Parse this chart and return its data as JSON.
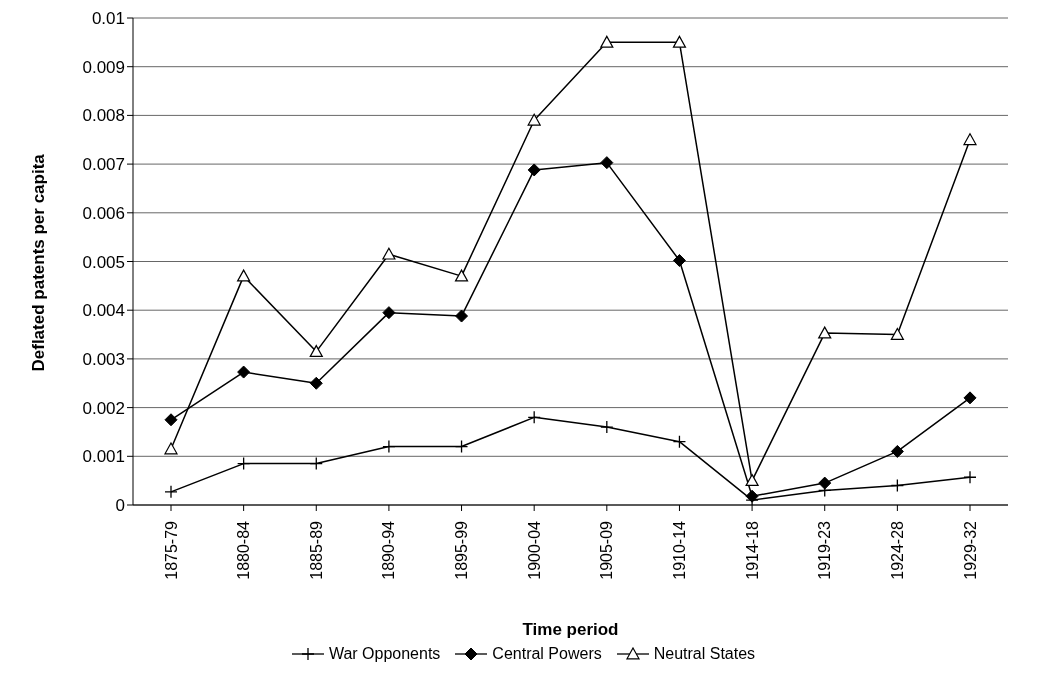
{
  "chart_data": {
    "type": "line",
    "xlabel": "Time period",
    "ylabel": "Deflated patents per capita",
    "categories": [
      "1875-79",
      "1880-84",
      "1885-89",
      "1890-94",
      "1895-99",
      "1900-04",
      "1905-09",
      "1910-14",
      "1914-18",
      "1919-23",
      "1924-28",
      "1929-32"
    ],
    "series": [
      {
        "name": "War Opponents",
        "color": "#000000",
        "marker": "cross",
        "values": [
          0.00027,
          0.00085,
          0.00085,
          0.0012,
          0.0012,
          0.0018,
          0.0016,
          0.0013,
          0.0001,
          0.0003,
          0.0004,
          0.00057
        ]
      },
      {
        "name": "Central Powers",
        "color": "#000000",
        "marker": "diamond",
        "values": [
          0.00175,
          0.00273,
          0.0025,
          0.00395,
          0.00388,
          0.00688,
          0.00703,
          0.00502,
          0.00018,
          0.00045,
          0.0011,
          0.0022
        ]
      },
      {
        "name": "Neutral States",
        "color": "#000000",
        "marker": "triangle",
        "values": [
          0.00115,
          0.0047,
          0.00315,
          0.00515,
          0.0047,
          0.0079,
          0.0095,
          0.0095,
          0.0005,
          0.00353,
          0.0035,
          0.0075
        ]
      }
    ],
    "ylim": [
      0,
      0.01
    ],
    "yticks": [
      0,
      0.001,
      0.002,
      0.003,
      0.004,
      0.005,
      0.006,
      0.007,
      0.008,
      0.009,
      0.01
    ],
    "grid": "y",
    "legend": "bottom",
    "line_style": "solid"
  }
}
